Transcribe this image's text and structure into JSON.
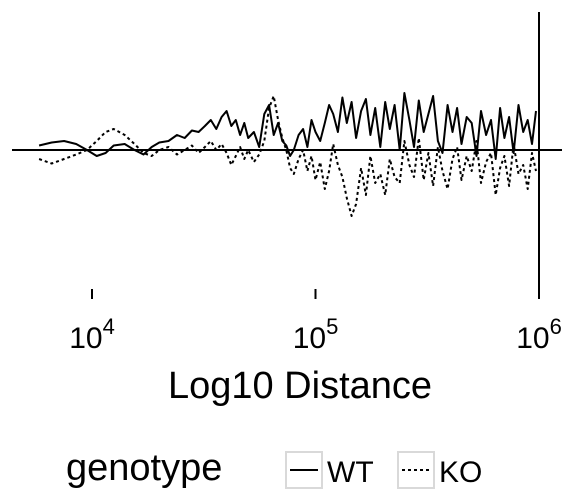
{
  "chart_data": {
    "type": "line",
    "x_scale": "log10",
    "xlim": [
      5000,
      1000000
    ],
    "ylim": [
      -1,
      1
    ],
    "xlabel": "Log10 Distance",
    "ylabel": "",
    "title": "",
    "x_ticks": [
      {
        "value": 10000,
        "base": "10",
        "exp": "4"
      },
      {
        "value": 100000,
        "base": "10",
        "exp": "5"
      },
      {
        "value": 1000000,
        "base": "10",
        "exp": "6"
      }
    ],
    "grid": false,
    "legend_position": "bottom",
    "legend": {
      "title": "genotype",
      "entries": [
        {
          "label": "WT",
          "dash": "solid"
        },
        {
          "label": "KO",
          "dash": "dotted"
        }
      ]
    },
    "series": [
      {
        "name": "WT",
        "dash": "solid",
        "x": [
          5800,
          6600,
          7500,
          8500,
          9500,
          10500,
          11500,
          12500,
          14000,
          15500,
          17000,
          18500,
          20000,
          22000,
          24000,
          26000,
          28000,
          30000,
          32000,
          34000,
          36000,
          38000,
          40000,
          42000,
          44000,
          46000,
          48000,
          50000,
          53000,
          56000,
          59000,
          62000,
          65000,
          68000,
          71000,
          74000,
          77000,
          80000,
          84000,
          88000,
          92000,
          96000,
          100000,
          105000,
          110000,
          115000,
          120000,
          126000,
          132000,
          138000,
          145000,
          152000,
          160000,
          168000,
          176000,
          185000,
          195000,
          205000,
          215000,
          226000,
          238000,
          250000,
          263000,
          276000,
          290000,
          305000,
          320000,
          336000,
          353000,
          370000,
          390000,
          410000,
          430000,
          450000,
          475000,
          500000,
          525000,
          550000,
          580000,
          610000,
          640000,
          670000,
          700000,
          735000,
          770000,
          810000,
          850000,
          890000,
          930000,
          970000
        ],
        "y": [
          0.03,
          0.05,
          0.06,
          0.04,
          0.0,
          -0.04,
          -0.02,
          0.03,
          0.04,
          0.0,
          -0.03,
          0.02,
          0.05,
          0.06,
          0.1,
          0.08,
          0.13,
          0.12,
          0.16,
          0.2,
          0.14,
          0.22,
          0.26,
          0.16,
          0.2,
          0.1,
          0.18,
          0.08,
          0.12,
          0.02,
          0.24,
          0.3,
          0.1,
          0.18,
          0.06,
          0.03,
          -0.04,
          0.0,
          0.1,
          0.14,
          0.02,
          0.2,
          0.12,
          0.06,
          0.18,
          0.3,
          0.24,
          0.12,
          0.35,
          0.18,
          0.32,
          0.08,
          0.26,
          0.34,
          0.1,
          0.28,
          0.02,
          0.32,
          0.14,
          0.3,
          0.0,
          0.38,
          0.2,
          0.02,
          0.33,
          0.12,
          0.24,
          0.36,
          0.06,
          -0.02,
          0.3,
          0.12,
          0.28,
          0.04,
          0.22,
          0.18,
          -0.04,
          0.26,
          0.1,
          0.2,
          -0.06,
          0.28,
          0.08,
          0.22,
          -0.02,
          0.3,
          0.12,
          0.2,
          0.04,
          0.26
        ]
      },
      {
        "name": "KO",
        "dash": "dotted",
        "x": [
          5800,
          6600,
          7500,
          8500,
          9500,
          10500,
          11500,
          12500,
          14000,
          15500,
          17000,
          18500,
          20000,
          22000,
          24000,
          26000,
          28000,
          30000,
          32000,
          34000,
          36000,
          38000,
          40000,
          42000,
          44000,
          46000,
          48000,
          50000,
          53000,
          56000,
          59000,
          62000,
          65000,
          68000,
          71000,
          74000,
          77000,
          80000,
          84000,
          88000,
          92000,
          96000,
          100000,
          105000,
          110000,
          115000,
          120000,
          126000,
          132000,
          138000,
          145000,
          152000,
          160000,
          168000,
          176000,
          185000,
          195000,
          205000,
          215000,
          226000,
          238000,
          250000,
          263000,
          276000,
          290000,
          305000,
          320000,
          336000,
          353000,
          370000,
          390000,
          410000,
          430000,
          450000,
          475000,
          500000,
          525000,
          550000,
          580000,
          610000,
          640000,
          670000,
          700000,
          735000,
          770000,
          810000,
          850000,
          890000,
          930000,
          970000
        ],
        "y": [
          -0.06,
          -0.09,
          -0.06,
          -0.03,
          0.0,
          0.06,
          0.12,
          0.14,
          0.1,
          0.04,
          -0.02,
          -0.04,
          0.0,
          0.02,
          -0.03,
          0.0,
          0.03,
          -0.02,
          0.02,
          0.06,
          0.0,
          0.04,
          -0.02,
          -0.1,
          -0.04,
          0.02,
          -0.06,
          0.0,
          -0.08,
          -0.03,
          0.06,
          0.28,
          0.36,
          0.2,
          0.08,
          0.0,
          -0.12,
          -0.16,
          -0.06,
          0.0,
          -0.14,
          -0.04,
          -0.2,
          -0.08,
          -0.26,
          -0.14,
          0.04,
          -0.1,
          -0.18,
          -0.32,
          -0.44,
          -0.36,
          -0.12,
          -0.3,
          -0.04,
          -0.22,
          -0.16,
          -0.3,
          -0.06,
          -0.18,
          -0.22,
          0.06,
          -0.1,
          -0.18,
          0.08,
          -0.2,
          -0.02,
          -0.24,
          0.02,
          -0.14,
          -0.26,
          -0.06,
          0.02,
          -0.2,
          -0.04,
          -0.14,
          0.06,
          -0.22,
          -0.08,
          -0.02,
          -0.3,
          -0.12,
          -0.04,
          -0.24,
          0.04,
          -0.16,
          -0.1,
          -0.26,
          -0.02,
          -0.14
        ]
      }
    ]
  }
}
